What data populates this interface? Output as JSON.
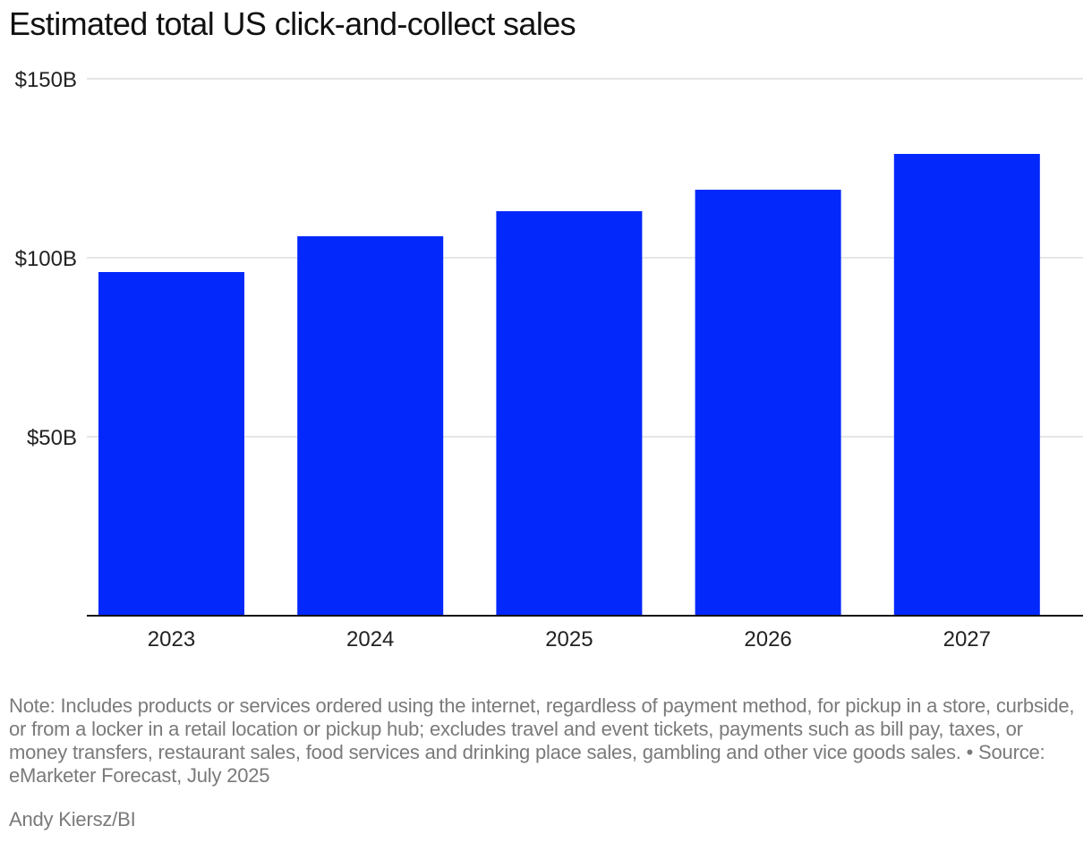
{
  "title": "Estimated total US click-and-collect sales",
  "chart_data": {
    "type": "bar",
    "title": "Estimated total US click-and-collect sales",
    "categories": [
      "2023",
      "2024",
      "2025",
      "2026",
      "2027"
    ],
    "values": [
      96,
      106,
      113,
      119,
      129
    ],
    "unit": "billion USD",
    "ylim": [
      0,
      150
    ],
    "yticks": [
      {
        "value": 50,
        "label": "$50B"
      },
      {
        "value": 100,
        "label": "$100B"
      },
      {
        "value": 150,
        "label": "$150B"
      }
    ],
    "xlabel": "",
    "ylabel": "",
    "grid": true,
    "bar_color": "#0328fc"
  },
  "footer": {
    "note": "Note: Includes products or services ordered using the internet, regardless of payment method, for pickup in a store, curbside, or from a locker in a retail location or pickup hub; excludes travel and event tickets, payments such as bill pay, taxes, or money transfers, restaurant sales, food services and drinking place sales, gambling and other vice goods sales. • Source: eMarketer Forecast, July 2025",
    "credit": "Andy Kiersz/BI"
  }
}
